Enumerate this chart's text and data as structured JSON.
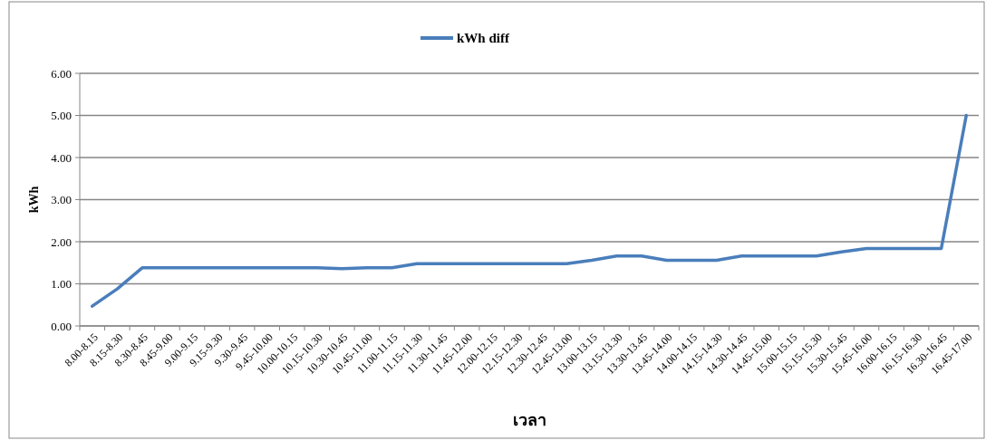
{
  "chart_data": {
    "type": "line",
    "xlabel": "เวลา",
    "ylabel": "kWh",
    "categories": [
      "8.00-8.15",
      "8.15-8.30",
      "8.30-8.45",
      "8.45-9.00",
      "9.00-9.15",
      "9.15-9.30",
      "9.30-9.45",
      "9.45-10.00",
      "10.00-10.15",
      "10.15-10.30",
      "10.30-10.45",
      "10.45-11.00",
      "11.00-11.15",
      "11.15-11.30",
      "11.30-11.45",
      "11.45-12.00",
      "12.00-12.15",
      "12.15-12.30",
      "12.30-12.45",
      "12.45-13.00",
      "13.00-13.15",
      "13.15-13.30",
      "13.30-13.45",
      "13.45-14.00",
      "14.00-14.15",
      "14.15-14.30",
      "14.30-14.45",
      "14.45-15.00",
      "15.00-15.15",
      "15.15-15.30",
      "15.30-15.45",
      "15.45-16.00",
      "16.00-16.15",
      "16.15-16.30",
      "16.30-16.45",
      "16.45-17.00"
    ],
    "series": [
      {
        "name": "kWh diff",
        "color": "#4a7ebb",
        "values": [
          0.47,
          0.88,
          1.38,
          1.38,
          1.38,
          1.38,
          1.38,
          1.38,
          1.38,
          1.38,
          1.36,
          1.38,
          1.38,
          1.48,
          1.48,
          1.48,
          1.48,
          1.48,
          1.48,
          1.48,
          1.56,
          1.66,
          1.66,
          1.56,
          1.56,
          1.56,
          1.66,
          1.66,
          1.66,
          1.66,
          1.76,
          1.84,
          1.84,
          1.84,
          1.84,
          5.0
        ]
      }
    ],
    "ylim": [
      0,
      6
    ],
    "yticks": [
      {
        "value": 0,
        "label": "0.00"
      },
      {
        "value": 1,
        "label": "1.00"
      },
      {
        "value": 2,
        "label": "2.00"
      },
      {
        "value": 3,
        "label": "3.00"
      },
      {
        "value": 4,
        "label": "4.00"
      },
      {
        "value": 5,
        "label": "5.00"
      },
      {
        "value": 6,
        "label": "6.00"
      }
    ],
    "grid": "y",
    "legend": "top",
    "marker": "none",
    "line_style": "solid"
  }
}
